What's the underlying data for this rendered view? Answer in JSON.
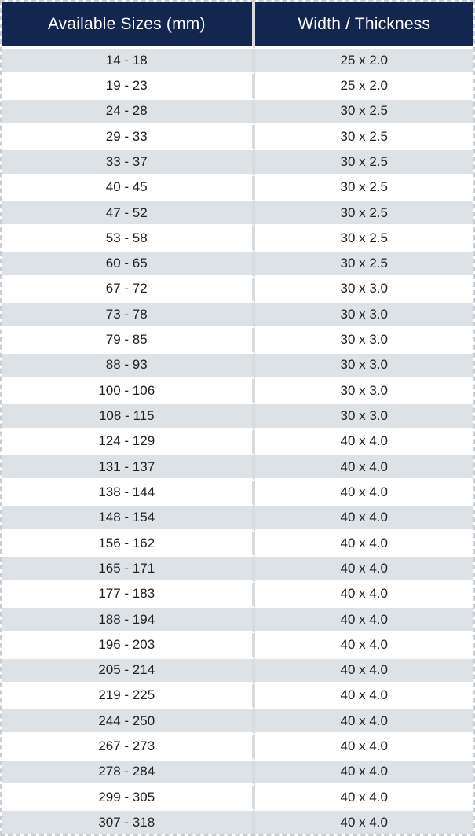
{
  "colors": {
    "header_bg": "#12264F",
    "header_text": "#FFFFFF",
    "stripe": "#DDE2E6",
    "row_alt": "#FFFFFF",
    "divider": "#D8DBDE",
    "cell_text": "#212121",
    "outer_border": "#C9CDD1"
  },
  "chart_data": {
    "type": "table",
    "title": "",
    "columns": [
      "Available Sizes (mm)",
      "Width / Thickness"
    ],
    "rows": [
      [
        "14 - 18",
        "25 x 2.0"
      ],
      [
        "19 - 23",
        "25 x 2.0"
      ],
      [
        "24 - 28",
        "30 x 2.5"
      ],
      [
        "29 - 33",
        "30 x 2.5"
      ],
      [
        "33 - 37",
        "30 x 2.5"
      ],
      [
        "40 - 45",
        "30 x 2.5"
      ],
      [
        "47 - 52",
        "30 x 2.5"
      ],
      [
        "53 - 58",
        "30 x 2.5"
      ],
      [
        "60 - 65",
        "30 x 2.5"
      ],
      [
        "67 - 72",
        "30 x 3.0"
      ],
      [
        "73 - 78",
        "30 x 3.0"
      ],
      [
        "79 - 85",
        "30 x 3.0"
      ],
      [
        "88 - 93",
        "30 x 3.0"
      ],
      [
        "100 - 106",
        "30 x 3.0"
      ],
      [
        "108 - 115",
        "30 x 3.0"
      ],
      [
        "124 - 129",
        "40 x 4.0"
      ],
      [
        "131 - 137",
        "40 x 4.0"
      ],
      [
        "138 - 144",
        "40 x 4.0"
      ],
      [
        "148 - 154",
        "40 x 4.0"
      ],
      [
        "156 - 162",
        "40 x 4.0"
      ],
      [
        "165 - 171",
        "40 x 4.0"
      ],
      [
        "177 - 183",
        "40 x 4.0"
      ],
      [
        "188 - 194",
        "40 x 4.0"
      ],
      [
        "196 - 203",
        "40 x 4.0"
      ],
      [
        "205 - 214",
        "40 x 4.0"
      ],
      [
        "219 - 225",
        "40 x 4.0"
      ],
      [
        "244 - 250",
        "40 x 4.0"
      ],
      [
        "267 - 273",
        "40 x 4.0"
      ],
      [
        "278 - 284",
        "40 x 4.0"
      ],
      [
        "299 - 305",
        "40 x 4.0"
      ],
      [
        "307 - 318",
        "40 x 4.0"
      ]
    ],
    "layout": {
      "stripe_pattern": "first data row shaded, alternating",
      "header_style": "navy background, white centered text",
      "grid": "white horizontal separators, gray vertical divider, dashed outer border"
    }
  }
}
